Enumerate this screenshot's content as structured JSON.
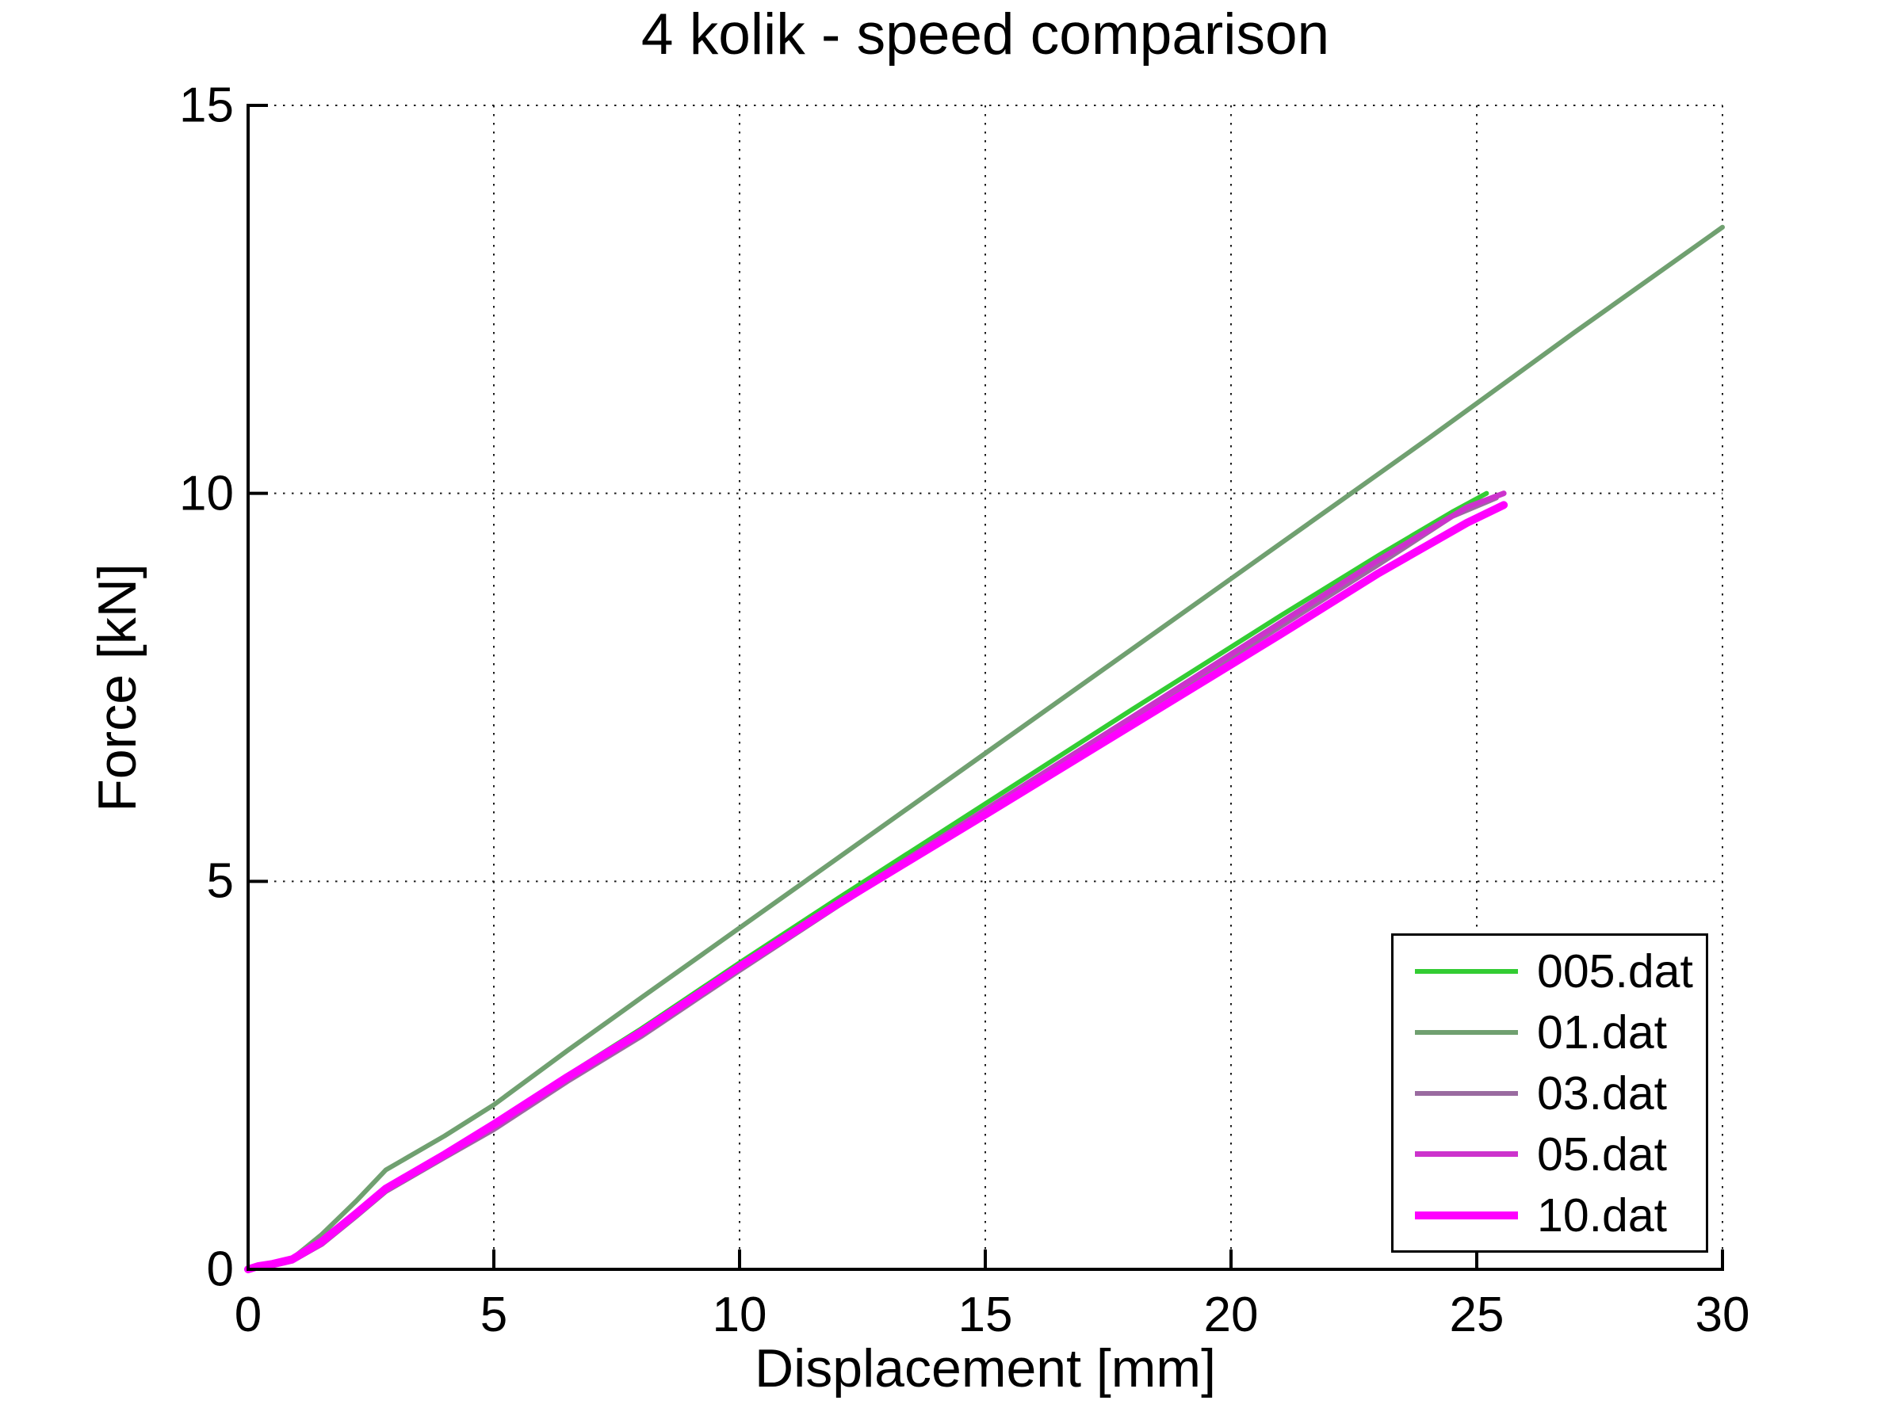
{
  "figure": {
    "background": "#ffffff",
    "axis_color": "#000000",
    "grid_color": "#1a1a1a"
  },
  "chart_data": {
    "type": "line",
    "title": "4 kolik - speed comparison",
    "xlabel": "Displacement [mm]",
    "ylabel": "Force [kN]",
    "xlim": [
      0,
      30
    ],
    "ylim": [
      0,
      15
    ],
    "xticks": [
      0,
      5,
      10,
      15,
      20,
      25,
      30
    ],
    "yticks": [
      0,
      5,
      10,
      15
    ],
    "grid": "dotted",
    "legend_position": "bottom-right",
    "series": [
      {
        "name": "005.dat",
        "color": "#33cc33",
        "line_width": 6,
        "points": [
          [
            0,
            0
          ],
          [
            0.2,
            0.03
          ],
          [
            0.5,
            0.06
          ],
          [
            0.9,
            0.12
          ],
          [
            1.5,
            0.35
          ],
          [
            2.2,
            0.72
          ],
          [
            2.8,
            1.05
          ],
          [
            4,
            1.5
          ],
          [
            5,
            1.88
          ],
          [
            6.5,
            2.5
          ],
          [
            8,
            3.1
          ],
          [
            10,
            3.95
          ],
          [
            12,
            4.78
          ],
          [
            15,
            6.0
          ],
          [
            18,
            7.22
          ],
          [
            21,
            8.42
          ],
          [
            23,
            9.2
          ],
          [
            24.5,
            9.76
          ],
          [
            25.2,
            10.0
          ]
        ]
      },
      {
        "name": "01.dat",
        "color": "#70a070",
        "line_width": 6,
        "points": [
          [
            0,
            0
          ],
          [
            0.2,
            0.03
          ],
          [
            0.5,
            0.06
          ],
          [
            0.9,
            0.14
          ],
          [
            1.5,
            0.45
          ],
          [
            2.2,
            0.88
          ],
          [
            2.8,
            1.28
          ],
          [
            4,
            1.72
          ],
          [
            5,
            2.12
          ],
          [
            6.5,
            2.82
          ],
          [
            8,
            3.5
          ],
          [
            10,
            4.4
          ],
          [
            12,
            5.3
          ],
          [
            15,
            6.65
          ],
          [
            18,
            8.0
          ],
          [
            21,
            9.35
          ],
          [
            24,
            10.7
          ],
          [
            27,
            12.08
          ],
          [
            30,
            13.43
          ]
        ]
      },
      {
        "name": "03.dat",
        "color": "#9a6ba0",
        "line_width": 6,
        "points": [
          [
            0,
            0
          ],
          [
            0.2,
            0.03
          ],
          [
            0.5,
            0.05
          ],
          [
            0.9,
            0.11
          ],
          [
            1.5,
            0.32
          ],
          [
            2.2,
            0.68
          ],
          [
            2.8,
            1.0
          ],
          [
            4,
            1.44
          ],
          [
            5,
            1.8
          ],
          [
            6.5,
            2.42
          ],
          [
            8,
            3.0
          ],
          [
            10,
            3.85
          ],
          [
            12,
            4.68
          ],
          [
            15,
            5.88
          ],
          [
            18,
            7.08
          ],
          [
            21,
            8.28
          ],
          [
            23,
            9.08
          ],
          [
            24.5,
            9.7
          ],
          [
            25.4,
            9.94
          ]
        ]
      },
      {
        "name": "05.dat",
        "color": "#cc33cc",
        "line_width": 7,
        "points": [
          [
            0,
            0
          ],
          [
            0.2,
            0.03
          ],
          [
            0.5,
            0.05
          ],
          [
            0.9,
            0.11
          ],
          [
            1.5,
            0.33
          ],
          [
            2.2,
            0.7
          ],
          [
            2.8,
            1.02
          ],
          [
            4,
            1.46
          ],
          [
            5,
            1.83
          ],
          [
            6.5,
            2.45
          ],
          [
            8,
            3.03
          ],
          [
            10,
            3.88
          ],
          [
            12,
            4.72
          ],
          [
            15,
            5.92
          ],
          [
            18,
            7.12
          ],
          [
            21,
            8.33
          ],
          [
            23,
            9.14
          ],
          [
            24.8,
            9.82
          ],
          [
            25.55,
            10.0
          ]
        ]
      },
      {
        "name": "10.dat",
        "color": "#ff00ff",
        "line_width": 10,
        "points": [
          [
            0,
            0
          ],
          [
            0.2,
            0.04
          ],
          [
            0.5,
            0.07
          ],
          [
            0.9,
            0.13
          ],
          [
            1.5,
            0.36
          ],
          [
            2.2,
            0.72
          ],
          [
            2.8,
            1.04
          ],
          [
            4,
            1.48
          ],
          [
            5,
            1.87
          ],
          [
            6.5,
            2.48
          ],
          [
            8,
            3.06
          ],
          [
            10,
            3.9
          ],
          [
            12,
            4.71
          ],
          [
            15,
            5.86
          ],
          [
            18,
            7.02
          ],
          [
            21,
            8.18
          ],
          [
            23,
            8.97
          ],
          [
            24.8,
            9.62
          ],
          [
            25.55,
            9.85
          ]
        ]
      }
    ]
  }
}
